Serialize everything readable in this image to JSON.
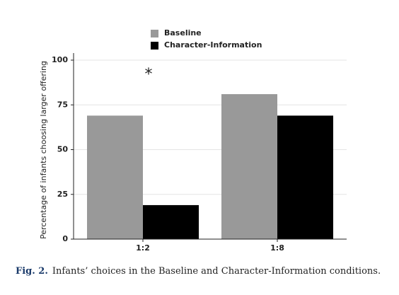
{
  "chart_data": {
    "type": "bar",
    "y_label": "Percentage of infants choosing larger offering",
    "categories": [
      "1:2",
      "1:8"
    ],
    "series": [
      {
        "name": "Baseline",
        "color": "#999999",
        "values": [
          69,
          81
        ]
      },
      {
        "name": "Character-Information",
        "color": "#000000",
        "values": [
          19,
          69
        ]
      }
    ],
    "ylim": [
      0,
      100
    ],
    "yticks": [
      0,
      25,
      50,
      75,
      100
    ],
    "grid": true,
    "annotation": "*",
    "legend": "top"
  },
  "caption": {
    "label": "Fig. 2.",
    "text": "Infants’ choices in the Baseline and Character-Information conditions."
  }
}
